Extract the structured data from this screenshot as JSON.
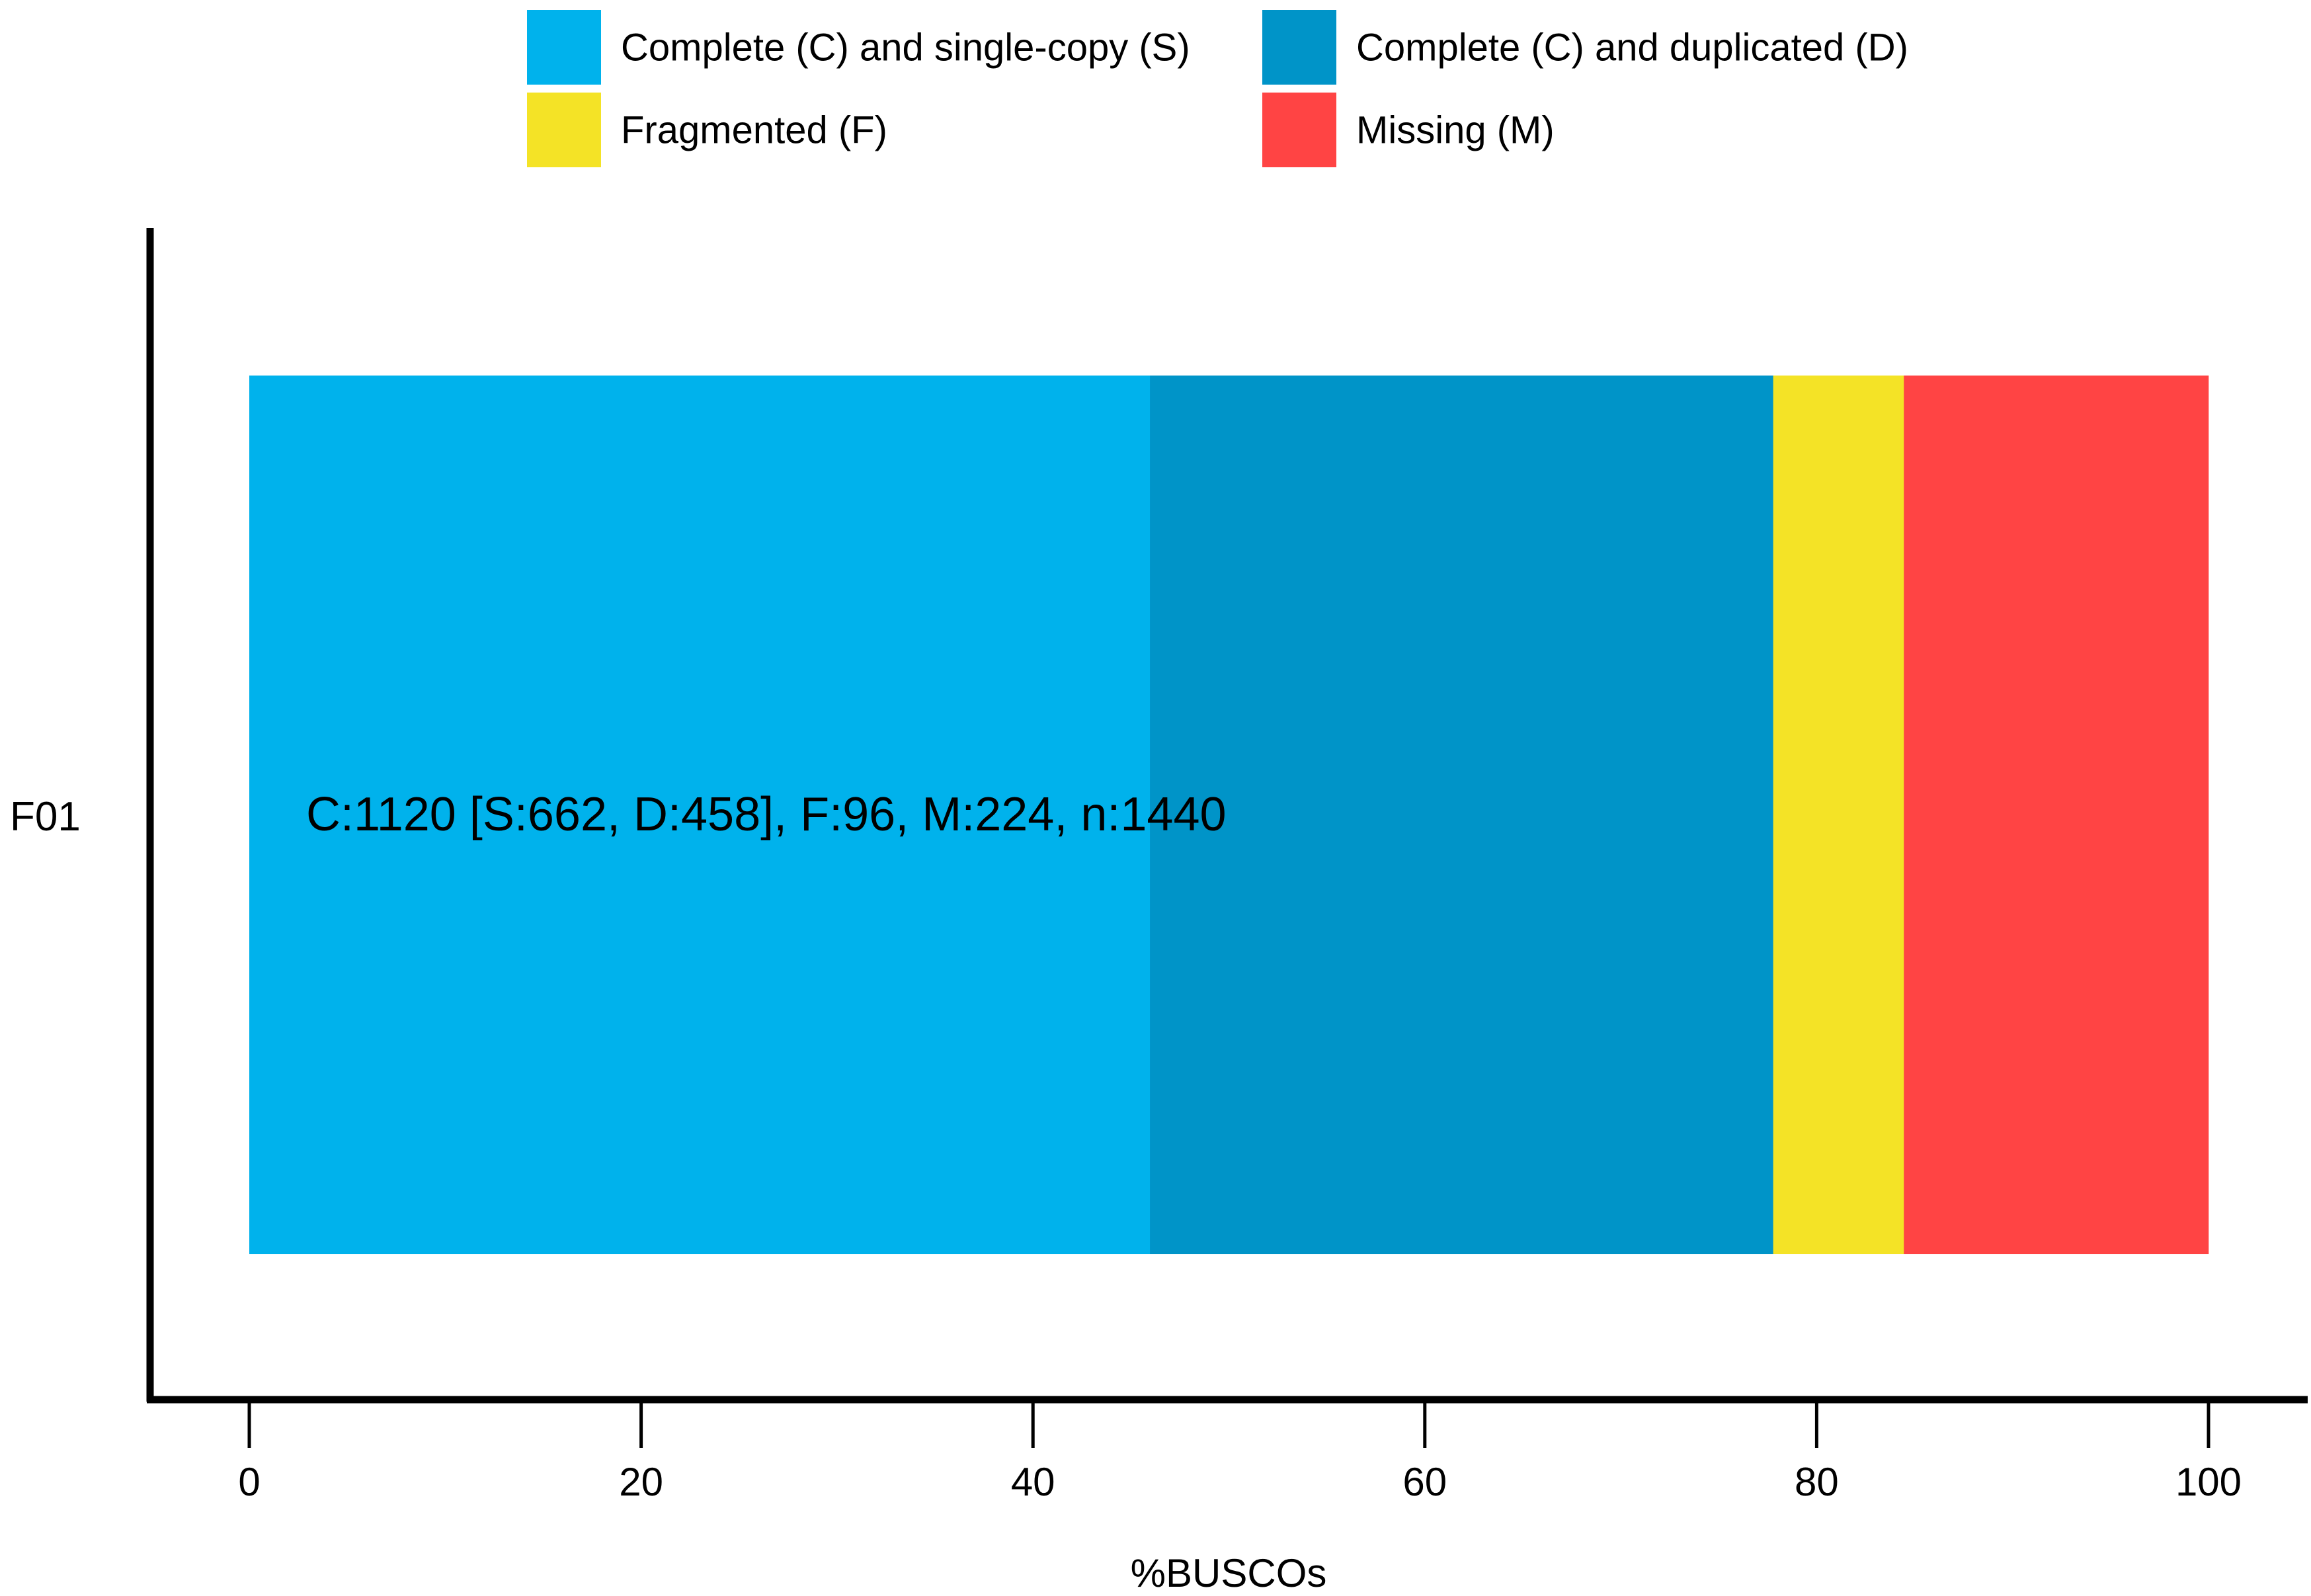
{
  "chart_data": {
    "type": "bar",
    "orientation": "horizontal",
    "stacked": true,
    "categories": [
      "F01"
    ],
    "series": [
      {
        "name": "Complete (C) and single-copy (S)",
        "values": [
          45.97
        ],
        "color": "#00B2EC"
      },
      {
        "name": "Complete (C) and duplicated (D)",
        "values": [
          31.81
        ],
        "color": "#0094C8"
      },
      {
        "name": "Fragmented (F)",
        "values": [
          6.67
        ],
        "color": "#F4E326"
      },
      {
        "name": "Missing (M)",
        "values": [
          15.56
        ],
        "color": "#FF4444"
      }
    ],
    "summary_text": "C:1120 [S:662, D:458], F:96, M:224, n:1440",
    "xlabel": "%BUSCOs",
    "ylabel": "",
    "xlim": [
      0,
      100
    ],
    "xticks": [
      0,
      20,
      40,
      60,
      80,
      100
    ],
    "grid": false,
    "legend_position": "top"
  }
}
